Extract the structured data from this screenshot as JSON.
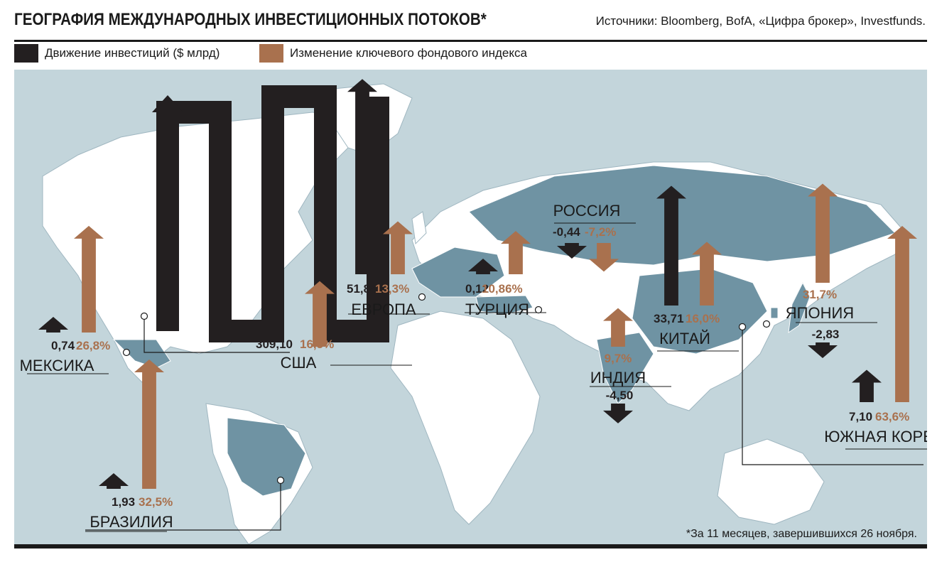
{
  "title": "ГЕОГРАФИЯ МЕЖДУНАРОДНЫХ ИНВЕСТИЦИОННЫХ ПОТОКОВ*",
  "sources": "Источники: Bloomberg, BofA, «Цифра брокер», Investfunds.",
  "footnote": "*За 11 месяцев, завершившихся 26 ноября.",
  "colors": {
    "investment": "#231f20",
    "index": "#a9714e",
    "map_bg": "#c3d5db",
    "land": "#ffffff",
    "land_dark": "#6f93a3"
  },
  "legend": [
    {
      "label": "Движение инвестиций  ($ млрд)",
      "color": "#231f20"
    },
    {
      "label": "Изменение ключевого фондового индекса",
      "color": "#a9714e"
    }
  ],
  "chart_data": {
    "type": "bar",
    "title": "ГЕОГРАФИЯ МЕЖДУНАРОДНЫХ ИНВЕСТИЦИОННЫХ ПОТОКОВ*",
    "categories": [
      "США",
      "ЕВРОПА",
      "МЕКСИКА",
      "БРАЗИЛИЯ",
      "ТУРЦИЯ",
      "РОССИЯ",
      "ИНДИЯ",
      "КИТАЙ",
      "ЯПОНИЯ",
      "ЮЖНАЯ КОРЕЯ"
    ],
    "series": [
      {
        "name": "Движение инвестиций  ($ млрд)",
        "values": [
          309.1,
          51.84,
          0.74,
          1.93,
          0.12,
          -0.44,
          -4.5,
          33.71,
          -2.83,
          7.1
        ],
        "labels": [
          "309,10",
          "51,84",
          "0,74",
          "1,93",
          "0,12",
          "-0,44",
          "-4,50",
          "33,71",
          "-2,83",
          "7,10"
        ]
      },
      {
        "name": "Изменение ключевого фондового индекса",
        "values": [
          16.5,
          13.3,
          26.8,
          32.5,
          10.86,
          -7.2,
          9.7,
          16.0,
          31.7,
          63.6
        ],
        "labels": [
          "16,5%",
          "13,3%",
          "26,8%",
          "32,5%",
          "10,86%",
          "-7,2%",
          "9,7%",
          "16,0%",
          "31,7%",
          "63,6%"
        ]
      }
    ],
    "legend": "top-left",
    "grid": false
  }
}
